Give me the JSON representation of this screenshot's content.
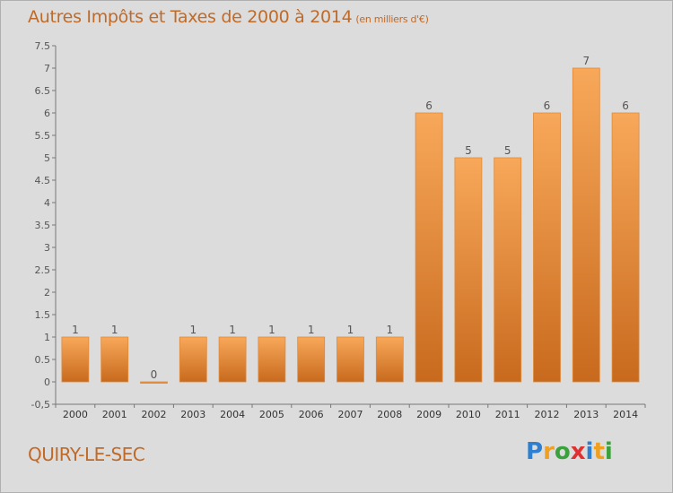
{
  "title": "Autres Impôts et Taxes de 2000 à 2014",
  "title_unit": "(en milliers d'€)",
  "location": "QUIRY-LE-SEC",
  "logo": {
    "text": "Proxiti",
    "letters": [
      {
        "ch": "P",
        "color": "#2e7fd0"
      },
      {
        "ch": "r",
        "color": "#f0a020"
      },
      {
        "ch": "o",
        "color": "#3aa23a"
      },
      {
        "ch": "x",
        "color": "#e03030"
      },
      {
        "ch": "i",
        "color": "#2e7fd0"
      },
      {
        "ch": "t",
        "color": "#f0a020"
      },
      {
        "ch": "i",
        "color": "#3aa23a"
      }
    ]
  },
  "colors": {
    "bar_top": "#f8a85a",
    "bar_bottom": "#c86a1e",
    "bar_stroke": "#e08a3a",
    "title": "#c06a28"
  },
  "chart_data": {
    "type": "bar",
    "categories": [
      "2000",
      "2001",
      "2002",
      "2003",
      "2004",
      "2005",
      "2006",
      "2007",
      "2008",
      "2009",
      "2010",
      "2011",
      "2012",
      "2013",
      "2014"
    ],
    "values": [
      1,
      1,
      0,
      1,
      1,
      1,
      1,
      1,
      1,
      6,
      5,
      5,
      6,
      7,
      6
    ],
    "ylim": [
      -0.5,
      7.5
    ],
    "yticks": [
      "-0,5",
      "0",
      "0.5",
      "1",
      "1.5",
      "2",
      "2.5",
      "3",
      "3.5",
      "4",
      "4.5",
      "5",
      "5.5",
      "6",
      "6.5",
      "7",
      "7.5"
    ],
    "ytick_values": [
      -0.5,
      0,
      0.5,
      1,
      1.5,
      2,
      2.5,
      3,
      3.5,
      4,
      4.5,
      5,
      5.5,
      6,
      6.5,
      7,
      7.5
    ],
    "grid": false,
    "data_labels": true
  }
}
